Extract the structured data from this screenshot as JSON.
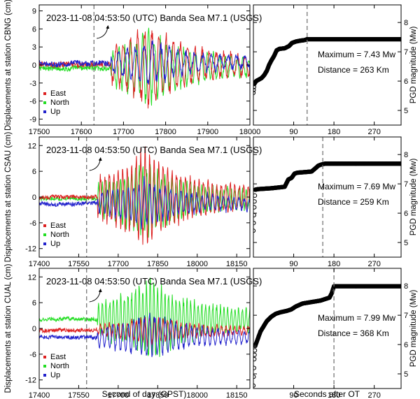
{
  "chart_data": {
    "type": "line",
    "event_title": "2023-11-08 04:53:50 (UTC) Banda Sea M7.1 (USGS)",
    "legend": [
      {
        "name": "East",
        "color": "#dd2020"
      },
      {
        "name": "North",
        "color": "#22dd22"
      },
      {
        "name": "Up",
        "color": "#2222cc"
      }
    ],
    "magnitude_color": "#000000",
    "marker_color": "#777777",
    "left_xlabel": "Second of day (GPST)",
    "right_xlabel": "Seconds after OT",
    "right_ylabel": "PGD magnitude (Mw)",
    "right_xlim": [
      0,
      330
    ],
    "right_xticks": [
      "90",
      "180",
      "270"
    ],
    "right_xtick_values": [
      90,
      180,
      270
    ],
    "panels": [
      {
        "station": "CBNG",
        "ylabel": "Displacements at station CBNG (cm)",
        "xlim": [
          17500,
          18000
        ],
        "xticks": [
          "17500",
          "17600",
          "17700",
          "17800",
          "17900",
          "18000"
        ],
        "xtick_values": [
          17500,
          17600,
          17700,
          17800,
          17900,
          18000
        ],
        "ylim": [
          -10,
          10
        ],
        "yticks": [
          "-9",
          "-6",
          "-3",
          "0",
          "3",
          "6",
          "9"
        ],
        "ytick_values": [
          -9,
          -6,
          -3,
          0,
          3,
          6,
          9
        ],
        "arrival": 17630,
        "peak_time": 17760,
        "peak_amp": {
          "east": 6,
          "north": 5.5,
          "up": 3.5
        },
        "offsets": {
          "east": 0,
          "north": -0.5,
          "up": 0.3
        },
        "max_label": "Maximum = 7.43 Mw",
        "dist_label": "Distance = 263 Km",
        "mw_ylim": [
          4.5,
          8.6
        ],
        "mw_yticks": [
          "5",
          "6",
          "7",
          "8"
        ],
        "mw_ytick_values": [
          5,
          6,
          7,
          8
        ],
        "mw_marker": 120,
        "mw_max": 7.43,
        "mw_curve": [
          [
            0,
            5.6
          ],
          [
            2,
            5.9
          ],
          [
            6,
            6.0
          ],
          [
            12,
            6.05
          ],
          [
            18,
            6.1
          ],
          [
            24,
            6.2
          ],
          [
            30,
            6.35
          ],
          [
            35,
            6.55
          ],
          [
            40,
            6.7
          ],
          [
            46,
            6.85
          ],
          [
            52,
            7.05
          ],
          [
            58,
            7.1
          ],
          [
            70,
            7.12
          ],
          [
            80,
            7.2
          ],
          [
            86,
            7.3
          ],
          [
            95,
            7.35
          ],
          [
            105,
            7.38
          ],
          [
            115,
            7.4
          ],
          [
            120,
            7.43
          ],
          [
            330,
            7.43
          ]
        ]
      },
      {
        "station": "CSAU",
        "ylabel": "Displacements at station CSAU (cm)",
        "xlim": [
          17400,
          18200
        ],
        "xticks": [
          "17400",
          "17550",
          "17700",
          "17850",
          "18000",
          "18150"
        ],
        "xtick_values": [
          17400,
          17550,
          17700,
          17850,
          18000,
          18150
        ],
        "ylim": [
          -14,
          14
        ],
        "yticks": [
          "-12",
          "-6",
          "0",
          "6",
          "12"
        ],
        "ytick_values": [
          -12,
          -6,
          0,
          6,
          12
        ],
        "arrival": 17580,
        "peak_time": 17800,
        "peak_amp": {
          "east": 10,
          "north": 8,
          "up": 5
        },
        "offsets": {
          "east": 0,
          "north": -0.5,
          "up": -1.5
        },
        "max_label": "Maximum = 7.69 Mw",
        "dist_label": "Distance = 259 Km",
        "mw_ylim": [
          4.5,
          8.6
        ],
        "mw_yticks": [
          "5",
          "6",
          "7",
          "8"
        ],
        "mw_ytick_values": [
          5,
          6,
          7,
          8
        ],
        "mw_marker": 155,
        "mw_max": 7.69,
        "mw_curve": [
          [
            0,
            5.4
          ],
          [
            2,
            6.2
          ],
          [
            4,
            6.8
          ],
          [
            10,
            6.82
          ],
          [
            40,
            6.85
          ],
          [
            70,
            6.9
          ],
          [
            78,
            7.15
          ],
          [
            85,
            7.2
          ],
          [
            92,
            7.35
          ],
          [
            98,
            7.38
          ],
          [
            130,
            7.42
          ],
          [
            140,
            7.55
          ],
          [
            145,
            7.62
          ],
          [
            150,
            7.65
          ],
          [
            160,
            7.69
          ],
          [
            330,
            7.69
          ]
        ]
      },
      {
        "station": "CUAL",
        "ylabel": "Displacements at station CUAL (cm)",
        "xlim": [
          17400,
          18200
        ],
        "xticks": [
          "17400",
          "17550",
          "17700",
          "17850",
          "18000",
          "18150"
        ],
        "xtick_values": [
          17400,
          17550,
          17700,
          17850,
          18000,
          18150
        ],
        "ylim": [
          -14,
          14
        ],
        "yticks": [
          "-12",
          "-6",
          "0",
          "6",
          "12"
        ],
        "ytick_values": [
          -12,
          -6,
          0,
          6,
          12
        ],
        "arrival": 17580,
        "peak_time": 17820,
        "peak_amp": {
          "east": 3,
          "north": 9,
          "up": 5
        },
        "offsets": {
          "east": -0.5,
          "north": 2,
          "up": -2
        },
        "max_label": "Maximum = 7.99 Mw",
        "dist_label": "Distance = 368 Km",
        "mw_ylim": [
          4.5,
          8.6
        ],
        "mw_yticks": [
          "5",
          "6",
          "7",
          "8"
        ],
        "mw_ytick_values": [
          5,
          6,
          7,
          8
        ],
        "mw_marker": 180,
        "mw_max": 7.99,
        "mw_curve": [
          [
            0,
            4.6
          ],
          [
            2,
            5.5
          ],
          [
            4,
            5.95
          ],
          [
            10,
            6.2
          ],
          [
            16,
            6.45
          ],
          [
            22,
            6.6
          ],
          [
            30,
            6.8
          ],
          [
            40,
            6.95
          ],
          [
            50,
            7.05
          ],
          [
            60,
            7.1
          ],
          [
            75,
            7.15
          ],
          [
            85,
            7.2
          ],
          [
            95,
            7.3
          ],
          [
            110,
            7.4
          ],
          [
            130,
            7.45
          ],
          [
            150,
            7.5
          ],
          [
            160,
            7.55
          ],
          [
            170,
            7.6
          ],
          [
            175,
            7.75
          ],
          [
            180,
            7.99
          ],
          [
            330,
            7.99
          ]
        ]
      }
    ]
  }
}
